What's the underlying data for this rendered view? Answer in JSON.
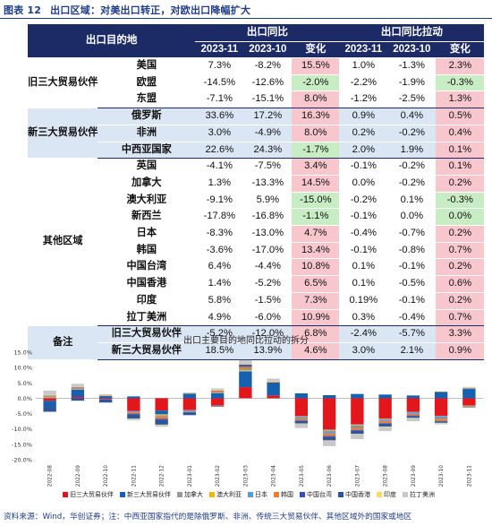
{
  "caption": {
    "number": "图表 12",
    "title": "出口区域：对美出口转正，对欧出口降幅扩大"
  },
  "table": {
    "header": {
      "corner": "出口目的地",
      "group_yoy": "出口同比",
      "group_pull": "出口同比拉动",
      "cols": [
        "2023-11",
        "2023-10",
        "变化",
        "2023-11",
        "2023-10",
        "变化"
      ]
    },
    "groups": [
      {
        "label": "旧三大贸易伙伴",
        "shade": "white",
        "rows": [
          {
            "name": "美国",
            "cells": [
              "7.3%",
              "-8.2%",
              "15.5%",
              "1.0%",
              "-1.3%",
              "2.3%"
            ],
            "c3": "pos",
            "c6": "pos"
          },
          {
            "name": "欧盟",
            "cells": [
              "-14.5%",
              "-12.6%",
              "-2.0%",
              "-2.2%",
              "-1.9%",
              "-0.3%"
            ],
            "c3": "neg",
            "c6": "neg"
          },
          {
            "name": "东盟",
            "cells": [
              "-7.1%",
              "-15.1%",
              "8.0%",
              "-1.2%",
              "-2.5%",
              "1.3%"
            ],
            "c3": "pos",
            "c6": "pos"
          }
        ]
      },
      {
        "label": "新三大贸易伙伴",
        "shade": "blue",
        "rows": [
          {
            "name": "俄罗斯",
            "cells": [
              "33.6%",
              "17.2%",
              "16.3%",
              "0.9%",
              "0.4%",
              "0.5%"
            ],
            "c3": "pos",
            "c6": "pos"
          },
          {
            "name": "非洲",
            "cells": [
              "3.0%",
              "-4.9%",
              "8.0%",
              "0.2%",
              "-0.2%",
              "0.4%"
            ],
            "c3": "pos",
            "c6": "pos"
          },
          {
            "name": "中西亚国家",
            "cells": [
              "22.6%",
              "24.3%",
              "-1.7%",
              "2.0%",
              "1.9%",
              "0.1%"
            ],
            "c3": "neg",
            "c6": "pos"
          }
        ]
      },
      {
        "label": "其他区域",
        "shade": "white",
        "rows": [
          {
            "name": "英国",
            "cells": [
              "-4.1%",
              "-7.5%",
              "3.4%",
              "-0.1%",
              "-0.2%",
              "0.1%"
            ],
            "c3": "pos",
            "c6": "pos"
          },
          {
            "name": "加拿大",
            "cells": [
              "1.3%",
              "-13.3%",
              "14.5%",
              "0.0%",
              "-0.2%",
              "0.2%"
            ],
            "c3": "pos",
            "c6": "pos"
          },
          {
            "name": "澳大利亚",
            "cells": [
              "-9.1%",
              "5.9%",
              "-15.0%",
              "-0.2%",
              "0.1%",
              "-0.3%"
            ],
            "c3": "neg",
            "c6": "neg"
          },
          {
            "name": "新西兰",
            "cells": [
              "-17.8%",
              "-16.8%",
              "-1.1%",
              "-0.1%",
              "0.0%",
              "0.0%"
            ],
            "c3": "neg",
            "c6": "neg"
          },
          {
            "name": "日本",
            "cells": [
              "-8.3%",
              "-13.0%",
              "4.7%",
              "-0.4%",
              "-0.7%",
              "0.2%"
            ],
            "c3": "pos",
            "c6": "pos"
          },
          {
            "name": "韩国",
            "cells": [
              "-3.6%",
              "-17.0%",
              "13.4%",
              "-0.1%",
              "-0.8%",
              "0.7%"
            ],
            "c3": "pos",
            "c6": "pos"
          },
          {
            "name": "中国台湾",
            "cells": [
              "6.4%",
              "-4.4%",
              "10.8%",
              "0.1%",
              "-0.1%",
              "0.2%"
            ],
            "c3": "pos",
            "c6": "pos"
          },
          {
            "name": "中国香港",
            "cells": [
              "1.4%",
              "-5.2%",
              "6.5%",
              "0.1%",
              "-0.5%",
              "0.6%"
            ],
            "c3": "pos",
            "c6": "pos"
          },
          {
            "name": "印度",
            "cells": [
              "5.8%",
              "-1.5%",
              "7.3%",
              "0.19%",
              "-0.1%",
              "0.2%"
            ],
            "c3": "pos",
            "c6": "pos"
          },
          {
            "name": "拉丁美洲",
            "cells": [
              "4.9%",
              "-6.0%",
              "10.9%",
              "0.3%",
              "-0.4%",
              "0.7%"
            ],
            "c3": "pos",
            "c6": "pos"
          }
        ]
      },
      {
        "label": "备注",
        "shade": "blue",
        "rows": [
          {
            "name": "旧三大贸易伙伴",
            "cells": [
              "-5.2%",
              "-12.0%",
              "6.8%",
              "-2.4%",
              "-5.7%",
              "3.3%"
            ],
            "c3": "pos",
            "c6": "pos"
          },
          {
            "name": "新三大贸易伙伴",
            "cells": [
              "18.5%",
              "13.9%",
              "4.6%",
              "3.0%",
              "2.1%",
              "0.9%"
            ],
            "c3": "pos",
            "c6": "pos"
          }
        ]
      }
    ]
  },
  "chart_data": {
    "type": "bar",
    "stacked": true,
    "title": "出口主要目的地同比拉动的拆分",
    "categories": [
      "2022-08",
      "2022-09",
      "2022-10",
      "2022-11",
      "2022-12",
      "2023-01",
      "2023-02",
      "2023-03",
      "2023-04",
      "2023-05",
      "2023-06",
      "2023-07",
      "2023-08",
      "2023-09",
      "2023-10",
      "2023-11"
    ],
    "ylim": [
      -20,
      15
    ],
    "yticks": [
      "15.0%",
      "10.0%",
      "5.0%",
      "0.0%",
      "-5.0%",
      "-10.0%",
      "-15.0%",
      "-20.0%"
    ],
    "series": [
      {
        "name": "旧三大贸易伙伴",
        "color": "#e3161c",
        "values": [
          -0.8,
          0.4,
          -0.3,
          -4.2,
          -4.0,
          -3.8,
          -2.4,
          3.6,
          0.9,
          -5.8,
          -10.2,
          -8.5,
          -6.6,
          -4.4,
          -5.7,
          -2.4
        ]
      },
      {
        "name": "新三大贸易伙伴",
        "color": "#1660b0",
        "values": [
          -2.0,
          2.4,
          0.7,
          0.6,
          -1.2,
          1.5,
          1.6,
          5.1,
          4.2,
          1.6,
          1.0,
          1.4,
          1.2,
          0.9,
          2.1,
          3.0
        ]
      },
      {
        "name": "加拿大",
        "color": "#9a9a9a",
        "values": [
          0.1,
          0.1,
          0.0,
          -0.1,
          -0.2,
          -0.1,
          -0.1,
          0.2,
          0.1,
          -0.2,
          -0.3,
          -0.2,
          -0.2,
          -0.2,
          -0.2,
          0.0
        ]
      },
      {
        "name": "澳大利亚",
        "color": "#f7b400",
        "values": [
          0.2,
          0.1,
          0.1,
          0.0,
          -0.2,
          0.1,
          0.1,
          0.3,
          0.1,
          -0.1,
          -0.2,
          -0.2,
          -0.1,
          0.0,
          0.1,
          -0.2
        ]
      },
      {
        "name": "日本",
        "color": "#5b9bd5",
        "values": [
          0.3,
          0.2,
          -0.1,
          -0.3,
          -0.3,
          -0.4,
          0.2,
          0.4,
          -0.1,
          -0.5,
          -0.8,
          -0.6,
          -0.5,
          -0.5,
          -0.7,
          -0.4
        ]
      },
      {
        "name": "韩国",
        "color": "#ed7d31",
        "values": [
          0.2,
          0.3,
          0.1,
          -0.4,
          -0.8,
          -0.2,
          0.5,
          0.6,
          0.1,
          -0.6,
          -0.8,
          -0.8,
          -0.7,
          -0.5,
          -0.8,
          -0.1
        ]
      },
      {
        "name": "中国台湾",
        "color": "#3b4cc0",
        "values": [
          0.1,
          0.1,
          0.0,
          -0.2,
          -0.3,
          -0.1,
          0.1,
          0.2,
          0.0,
          -0.2,
          -0.3,
          -0.3,
          -0.2,
          -0.2,
          -0.1,
          0.1
        ]
      },
      {
        "name": "中国香港",
        "color": "#2e5597",
        "values": [
          -1.6,
          -0.8,
          -1.0,
          -1.4,
          -1.6,
          -0.9,
          -0.2,
          0.6,
          0.0,
          -0.8,
          -1.1,
          -1.0,
          -0.9,
          -0.6,
          -0.5,
          0.1
        ]
      },
      {
        "name": "印度",
        "color": "#ffd966",
        "values": [
          0.2,
          0.1,
          0.0,
          -0.1,
          -0.1,
          0.0,
          0.1,
          0.2,
          0.1,
          -0.1,
          -0.1,
          -0.1,
          -0.1,
          -0.1,
          -0.1,
          0.2
        ]
      },
      {
        "name": "拉丁美洲",
        "color": "#c9c9c9",
        "values": [
          1.4,
          1.0,
          0.4,
          -0.5,
          -0.6,
          0.3,
          0.6,
          1.2,
          0.9,
          -1.4,
          -1.8,
          -1.6,
          -1.4,
          -1.0,
          -0.4,
          0.3
        ]
      }
    ]
  },
  "source": "资料来源：Wind，华创证券；注：中西亚国家指代的是除俄罗斯、非洲、传统三大贸易伙伴、其他区域外的国家或地区"
}
